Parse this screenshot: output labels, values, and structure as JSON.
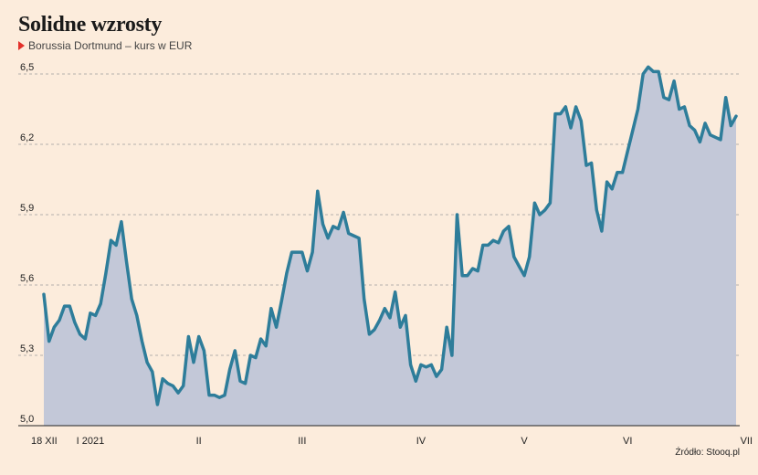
{
  "title": "Solidne wzrosty",
  "subtitle": "Borussia Dortmund – kurs w EUR",
  "source": "Źródło: Stooq.pl",
  "colors": {
    "background": "#fcecdc",
    "line": "#2e7d9a",
    "area": "#c3c8d8",
    "grid": "#9a9a9a",
    "marker": "#e3312b"
  },
  "chart_data": {
    "type": "area",
    "title": "Solidne wzrosty",
    "subtitle": "Borussia Dortmund – kurs w EUR",
    "xlabel": "",
    "ylabel": "",
    "ylim": [
      5.0,
      6.5
    ],
    "yticks": [
      5.0,
      5.3,
      5.6,
      5.9,
      6.2,
      6.5
    ],
    "ytick_labels": [
      "5,0",
      "5,3",
      "5,6",
      "5,9",
      "6,2",
      "6,5"
    ],
    "xtick_labels": [
      {
        "label": "18 XII",
        "index": 0
      },
      {
        "label": "I 2021",
        "index": 9
      },
      {
        "label": "II",
        "index": 30
      },
      {
        "label": "III",
        "index": 50
      },
      {
        "label": "IV",
        "index": 73
      },
      {
        "label": "V",
        "index": 93
      },
      {
        "label": "VI",
        "index": 113
      },
      {
        "label": "VII",
        "index": 136
      }
    ],
    "grid": "horizontal dashed",
    "legend": "none",
    "series": [
      {
        "values": [
          5.56,
          5.36,
          5.42,
          5.45,
          5.51,
          5.51,
          5.44,
          5.39,
          5.37,
          5.48,
          5.47,
          5.52,
          5.65,
          5.79,
          5.77,
          5.87,
          5.7,
          5.54,
          5.47,
          5.36,
          5.27,
          5.23,
          5.09,
          5.2,
          5.18,
          5.17,
          5.14,
          5.17,
          5.38,
          5.27,
          5.38,
          5.32,
          5.13,
          5.13,
          5.12,
          5.13,
          5.24,
          5.32,
          5.19,
          5.18,
          5.3,
          5.29,
          5.37,
          5.34,
          5.5,
          5.42,
          5.53,
          5.65,
          5.74,
          5.74,
          5.74,
          5.66,
          5.74,
          6.0,
          5.86,
          5.8,
          5.85,
          5.84,
          5.91,
          5.82,
          5.81,
          5.8,
          5.54,
          5.39,
          5.41,
          5.45,
          5.5,
          5.46,
          5.57,
          5.42,
          5.47,
          5.26,
          5.19,
          5.26,
          5.25,
          5.26,
          5.21,
          5.24,
          5.42,
          5.3,
          5.9,
          5.64,
          5.64,
          5.67,
          5.66,
          5.77,
          5.77,
          5.79,
          5.78,
          5.83,
          5.85,
          5.72,
          5.68,
          5.64,
          5.72,
          5.95,
          5.9,
          5.92,
          5.95,
          6.33,
          6.33,
          6.36,
          6.27,
          6.36,
          6.3,
          6.11,
          6.12,
          5.92,
          5.83,
          6.04,
          6.01,
          6.08,
          6.08,
          6.17,
          6.26,
          6.35,
          6.5,
          6.53,
          6.51,
          6.51,
          6.4,
          6.39,
          6.47,
          6.35,
          6.36,
          6.28,
          6.26,
          6.21,
          6.29,
          6.24,
          6.23,
          6.22,
          6.4,
          6.28,
          6.32
        ]
      }
    ]
  }
}
